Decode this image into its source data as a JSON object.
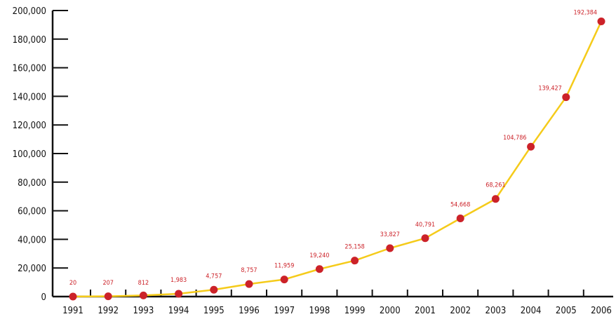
{
  "chart_data": {
    "type": "line",
    "title": "",
    "xlabel": "",
    "ylabel": "",
    "categories": [
      "1991",
      "1992",
      "1993",
      "1994",
      "1995",
      "1996",
      "1997",
      "1998",
      "1999",
      "2000",
      "2001",
      "2002",
      "2003",
      "2004",
      "2005",
      "2006"
    ],
    "series": [
      {
        "values": [
          20,
          207,
          812,
          1983,
          4757,
          8757,
          11959,
          19240,
          25158,
          33827,
          40791,
          54668,
          68261,
          104786,
          139427,
          192384
        ],
        "data_labels": [
          "20",
          "207",
          "812",
          "1,983",
          "4,757",
          "8,757",
          "11,959",
          "19,240",
          "25,158",
          "33,827",
          "40,791",
          "54,668",
          "68,261",
          "104,786",
          "139,427",
          "192,384"
        ]
      }
    ],
    "ylim": [
      0,
      200000
    ],
    "y_ticks": [
      0,
      20000,
      40000,
      60000,
      80000,
      100000,
      120000,
      140000,
      160000,
      180000,
      200000
    ],
    "y_tick_labels": [
      "0",
      "20,000",
      "40,000",
      "60,000",
      "80,000",
      "100,000",
      "120,000",
      "140,000",
      "160,000",
      "180,000",
      "200,000"
    ],
    "grid": false,
    "legend": "none",
    "colors": {
      "line": "#f5cb1a",
      "marker": "#cc2229",
      "data_label": "#cc2229",
      "axis": "#111111"
    }
  }
}
